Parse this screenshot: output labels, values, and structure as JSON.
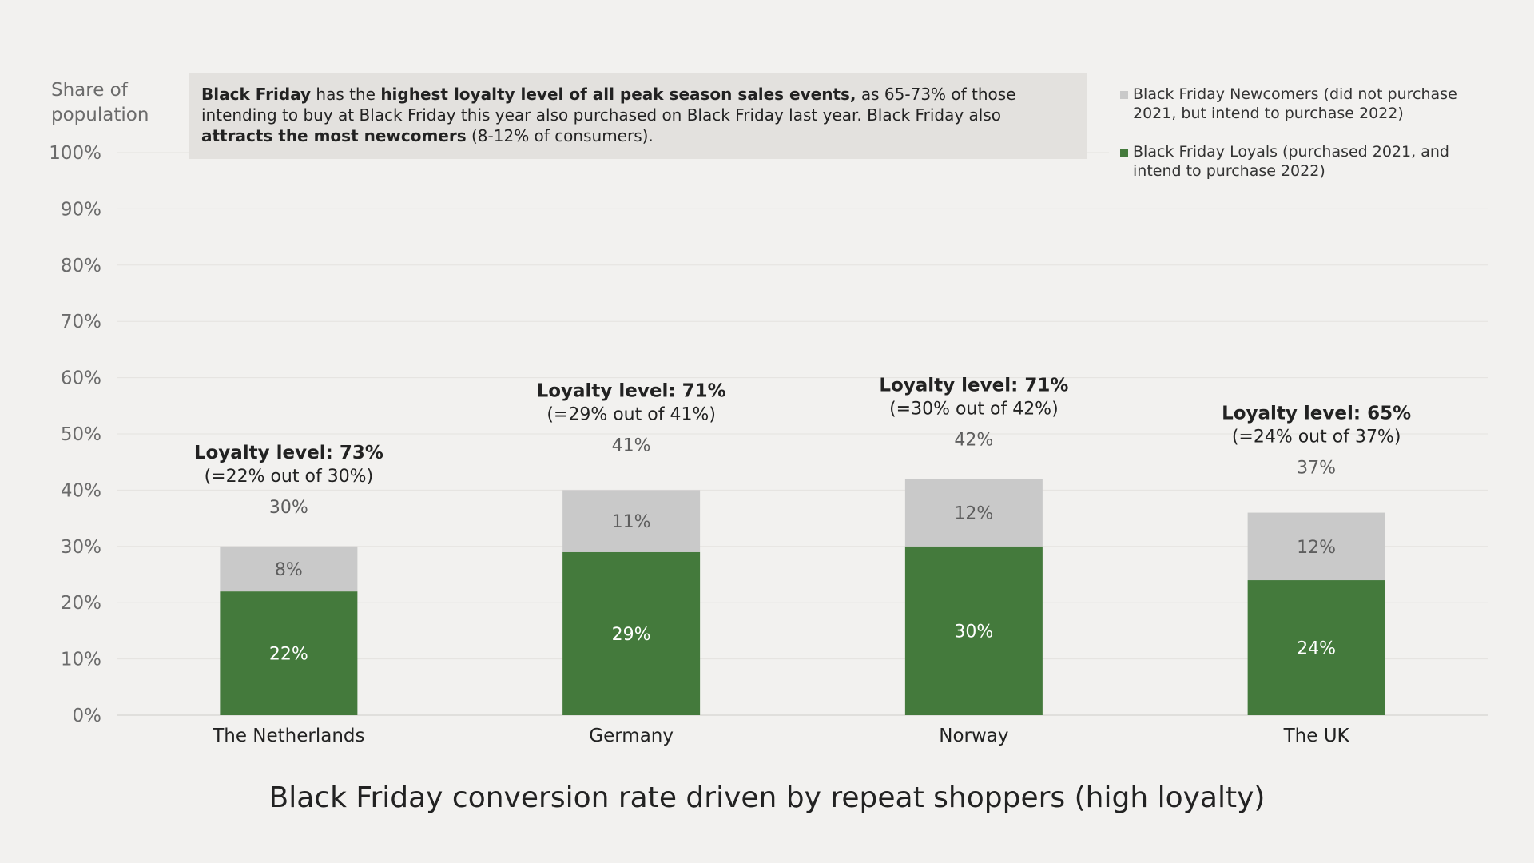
{
  "callout": {
    "parts": [
      {
        "text": "Black Friday",
        "bold": true
      },
      {
        "text": " has the ",
        "bold": false
      },
      {
        "text": "highest loyalty level of all peak season sales events,",
        "bold": true
      },
      {
        "text": " as 65-73% of those intending to buy at Black Friday this year also purchased on Black Friday last year. Black Friday also ",
        "bold": false
      },
      {
        "text": "attracts the most newcomers",
        "bold": true
      },
      {
        "text": " (8-12% of consumers).",
        "bold": false
      }
    ]
  },
  "chart_data": {
    "type": "bar",
    "stacked": true,
    "title": "Black Friday conversion rate driven by repeat shoppers (high loyalty)",
    "ylabel": "Share of population",
    "ylabel_lines": [
      "Share of",
      "population"
    ],
    "ylim": [
      0,
      100
    ],
    "yticks": [
      "0%",
      "10%",
      "20%",
      "30%",
      "40%",
      "50%",
      "60%",
      "70%",
      "80%",
      "90%",
      "100%"
    ],
    "grid": true,
    "legend_position": "top-right",
    "categories": [
      "The Netherlands",
      "Germany",
      "Norway",
      "The UK"
    ],
    "series": [
      {
        "name": "Black Friday Loyals (purchased 2021, and intend to purchase 2022)",
        "color": "#447a3c",
        "values": [
          22,
          29,
          30,
          24
        ],
        "labels": [
          "22%",
          "29%",
          "30%",
          "24%"
        ]
      },
      {
        "name": "Black Friday Newcomers (did not purchase 2021, but intend to purchase 2022)",
        "color": "#c9c9c9",
        "values": [
          8,
          11,
          12,
          12
        ],
        "labels": [
          "8%",
          "11%",
          "12%",
          "12%"
        ]
      }
    ],
    "legend_order": [
      1,
      0
    ],
    "totals": [
      30,
      41,
      42,
      37
    ],
    "total_labels": [
      "30%",
      "41%",
      "42%",
      "37%"
    ],
    "annotations": [
      {
        "title": "Loyalty level: 73%",
        "detail": "(=22% out of 30%)"
      },
      {
        "title": "Loyalty level: 71%",
        "detail": "(=29% out of 41%)"
      },
      {
        "title": "Loyalty level: 71%",
        "detail": "(=30% out of 42%)"
      },
      {
        "title": "Loyalty level: 65%",
        "detail": "(=24% out of 37%)"
      }
    ]
  }
}
